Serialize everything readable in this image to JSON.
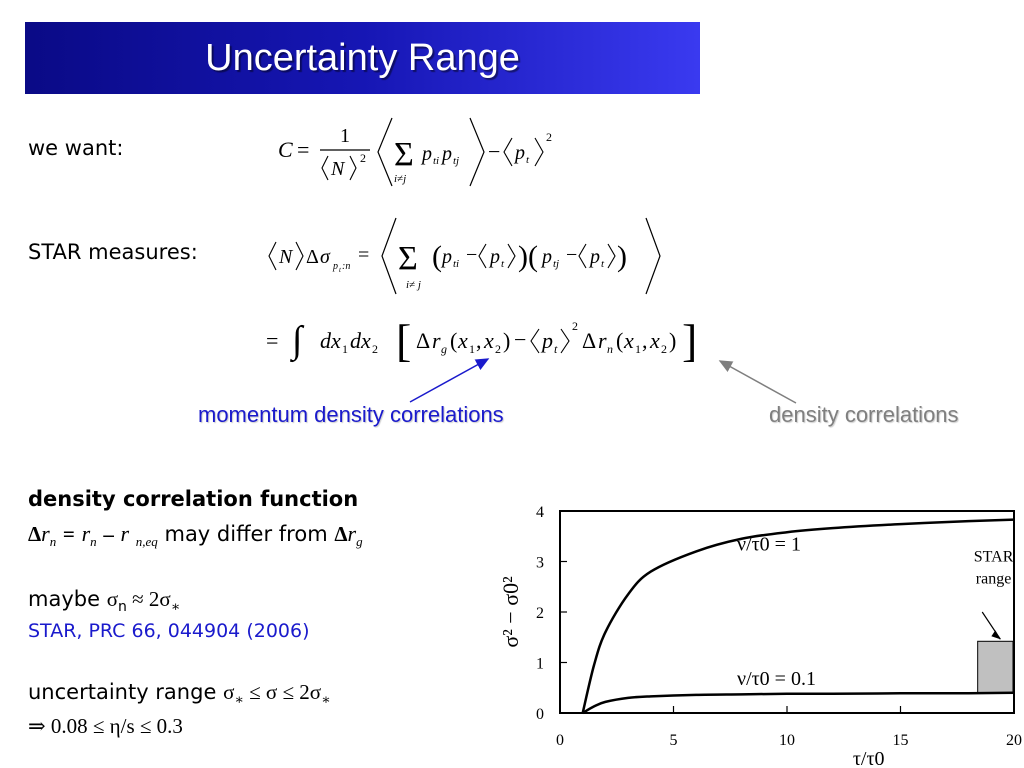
{
  "title": "Uncertainty Range",
  "equations": {
    "want_label": "we want:",
    "star_label": "STAR measures:"
  },
  "annotations": {
    "momentum": "momentum density correlations",
    "density": "density correlations"
  },
  "body": {
    "heading": "density correlation function",
    "line1_mid": "may differ from",
    "maybe_label": "maybe",
    "reference": "STAR, PRC 66, 044904 (2006)",
    "uncertainty_label": "uncertainty range"
  },
  "colors": {
    "title_bg": "#1616b4",
    "accent_blue": "#1a1acc",
    "accent_gray": "#7f7f7f"
  },
  "chart_data": {
    "type": "line",
    "xlabel": "τ/τ0",
    "ylabel": "σ² − σ0²",
    "xlim": [
      0,
      20
    ],
    "ylim": [
      0,
      4
    ],
    "xticks": [
      0,
      5,
      10,
      15,
      20
    ],
    "yticks": [
      0,
      1,
      2,
      3,
      4
    ],
    "series": [
      {
        "name": "ν/τ0 = 1",
        "x": [
          1,
          1.5,
          2,
          3,
          4,
          6,
          8,
          10,
          12,
          15,
          18,
          20
        ],
        "values": [
          0,
          0.95,
          1.6,
          2.35,
          2.8,
          3.2,
          3.45,
          3.58,
          3.66,
          3.74,
          3.8,
          3.83
        ]
      },
      {
        "name": "ν/τ0 = 0.1",
        "x": [
          1,
          1.5,
          2,
          3,
          4,
          6,
          8,
          10,
          12,
          15,
          18,
          20
        ],
        "values": [
          0,
          0.13,
          0.22,
          0.3,
          0.33,
          0.36,
          0.37,
          0.38,
          0.38,
          0.39,
          0.39,
          0.4
        ]
      }
    ],
    "star_range": {
      "ymin": 0.4,
      "ymax": 1.42,
      "label": [
        "STAR",
        "range"
      ]
    },
    "grid": false
  }
}
